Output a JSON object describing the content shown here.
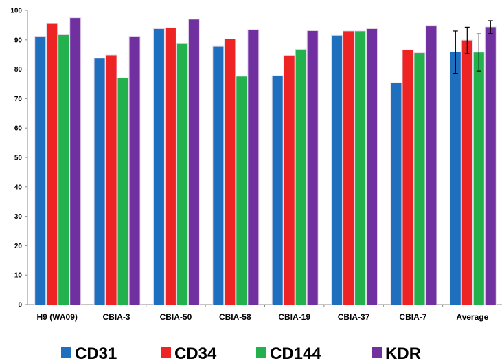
{
  "chart_data": {
    "type": "bar",
    "title": "",
    "xlabel": "",
    "ylabel": "",
    "ylim": [
      0,
      100
    ],
    "yticks": [
      0,
      10,
      20,
      30,
      40,
      50,
      60,
      70,
      80,
      90,
      100
    ],
    "grid": false,
    "legend_position": "bottom",
    "categories": [
      "H9 (WA09)",
      "CBIA-3",
      "CBIA-50",
      "CBIA-58",
      "CBIA-19",
      "CBIA-37",
      "CBIA-7",
      "Average"
    ],
    "series": [
      {
        "name": "CD31",
        "color": "#1f6fbf",
        "values": [
          90.9,
          83.6,
          93.7,
          87.7,
          77.7,
          91.4,
          75.3,
          85.8
        ]
      },
      {
        "name": "CD34",
        "color": "#ee2424",
        "values": [
          95.4,
          84.7,
          94.0,
          90.2,
          84.6,
          92.9,
          86.5,
          89.8
        ]
      },
      {
        "name": "CD144",
        "color": "#22b14c",
        "values": [
          91.6,
          76.9,
          88.6,
          77.5,
          86.7,
          92.9,
          85.5,
          85.7
        ]
      },
      {
        "name": "KDR",
        "color": "#7030a0",
        "values": [
          97.4,
          90.9,
          96.9,
          93.4,
          93.0,
          93.7,
          94.6,
          94.3
        ]
      }
    ],
    "error_bars": {
      "category": "Average",
      "values": [
        7.2,
        4.5,
        6.3,
        2.2
      ]
    }
  }
}
